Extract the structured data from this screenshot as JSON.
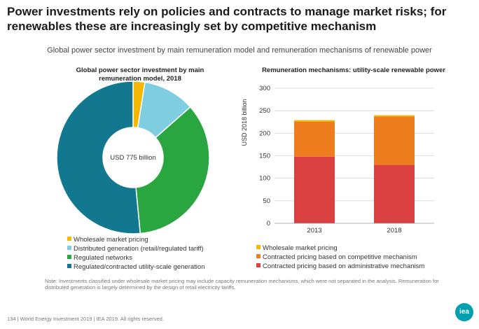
{
  "header": {
    "title": "Power investments rely on policies and contracts to manage market risks; for renewables these are increasingly set by competitive mechanism",
    "subtitle": "Global power sector investment by main remuneration model and remuneration mechanisms of renewable power"
  },
  "chart_data": [
    {
      "type": "pie",
      "title": "Global power sector investment by main remuneration model, 2018",
      "center_label": "USD 775 billion",
      "slices": [
        {
          "label": "Wholesale market pricing",
          "value": 2.5,
          "color": "#f5b800"
        },
        {
          "label": "Distributed generation (retail/regulated tariff)",
          "value": 11,
          "color": "#7fcde0"
        },
        {
          "label": "Regulated networks",
          "value": 35,
          "color": "#2aa640"
        },
        {
          "label": "Regulated/contracted utility-scale generation",
          "value": 51.5,
          "color": "#12788f"
        }
      ],
      "legend_position": "bottom"
    },
    {
      "type": "bar",
      "stacked": true,
      "title": "Remuneration mechanisms: utility-scale renewable power",
      "ylabel": "USD 2018 billion",
      "ylim": [
        0,
        300
      ],
      "yticks": [
        "0",
        "50",
        "100",
        "150",
        "200",
        "250",
        "300"
      ],
      "categories": [
        "2013",
        "2018"
      ],
      "series": [
        {
          "name": "Contracted pricing based on administrative mechanism",
          "values": [
            148,
            130
          ],
          "color": "#d9403f"
        },
        {
          "name": "Contracted pricing based on competitive mechanism",
          "values": [
            78,
            107
          ],
          "color": "#ee7d1e"
        },
        {
          "name": "Wholesale market pricing",
          "values": [
            3,
            3
          ],
          "color": "#f5b800"
        }
      ],
      "legend_order": [
        2,
        1,
        0
      ],
      "legend_position": "bottom"
    }
  ],
  "note": "Note: Investments classified under wholesale market pricing may include capacity remuneration mechanisms, which were not separated in the analysis. Remuneration for distributed generation is largely determined by the design of retail electricity tariffs.",
  "footer": "134 | World Energy Investment 2019 | IEA 2019. All rights reserved.",
  "logo_text": "iea"
}
